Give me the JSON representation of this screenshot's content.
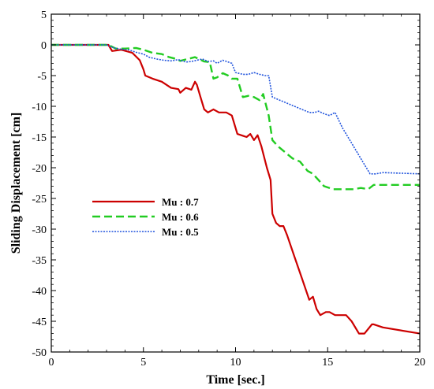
{
  "chart_data": {
    "type": "line",
    "title": "",
    "xlabel": "Time [sec.]",
    "ylabel": "Sliding Displacement [cm]",
    "xlim": [
      0,
      20
    ],
    "ylim": [
      -50,
      5
    ],
    "xticks": [
      "0",
      "5",
      "10",
      "15",
      "20"
    ],
    "yticks": [
      "5",
      "0",
      "-5",
      "-10",
      "-15",
      "-20",
      "-25",
      "-30",
      "-35",
      "-40",
      "-45",
      "-50"
    ],
    "grid": false,
    "legend_position": "center-left",
    "series": [
      {
        "name": "Mu : 0.7",
        "color": "#cc0000",
        "style": "solid",
        "x": [
          0,
          3.1,
          3.3,
          3.8,
          4.4,
          4.8,
          5.0,
          5.1,
          5.5,
          6.0,
          6.5,
          6.9,
          7.0,
          7.3,
          7.6,
          7.8,
          7.9,
          8.1,
          8.3,
          8.5,
          8.8,
          9.1,
          9.5,
          9.8,
          10.1,
          10.4,
          10.6,
          10.8,
          11.0,
          11.2,
          11.4,
          11.7,
          11.9,
          12.0,
          12.2,
          12.4,
          12.6,
          12.8,
          13.2,
          13.6,
          14.0,
          14.2,
          14.4,
          14.6,
          14.9,
          15.1,
          15.4,
          15.7,
          16.0,
          16.3,
          16.7,
          17.0,
          17.4,
          17.5,
          18.0,
          20.0
        ],
        "y": [
          0,
          0,
          -1.0,
          -0.8,
          -1.3,
          -2.5,
          -4.0,
          -5.0,
          -5.5,
          -6.0,
          -7.0,
          -7.2,
          -7.8,
          -7.0,
          -7.3,
          -6.0,
          -6.5,
          -8.5,
          -10.5,
          -11.0,
          -10.5,
          -11.0,
          -11.0,
          -11.5,
          -14.5,
          -14.8,
          -15.0,
          -14.5,
          -15.5,
          -14.7,
          -16.5,
          -20.0,
          -22.0,
          -27.5,
          -29.0,
          -29.5,
          -29.5,
          -31.0,
          -34.5,
          -38.0,
          -41.5,
          -41.0,
          -43.0,
          -44.0,
          -43.5,
          -43.5,
          -44.0,
          -44.0,
          -44.0,
          -45.0,
          -47.0,
          -47.0,
          -45.5,
          -45.5,
          -46.0,
          -47.0
        ]
      },
      {
        "name": "Mu : 0.6",
        "color": "#22cc22",
        "style": "dashed",
        "x": [
          0,
          3.1,
          3.5,
          4.0,
          4.6,
          5.0,
          5.5,
          6.0,
          6.4,
          6.8,
          7.0,
          7.4,
          7.8,
          8.0,
          8.3,
          8.6,
          8.8,
          9.0,
          9.3,
          9.6,
          9.8,
          10.1,
          10.4,
          10.7,
          11.0,
          11.3,
          11.5,
          11.8,
          12.0,
          12.3,
          12.7,
          13.1,
          13.5,
          13.9,
          14.2,
          14.5,
          14.8,
          15.0,
          15.3,
          15.6,
          16.0,
          16.4,
          16.8,
          17.2,
          17.5,
          18.0,
          20.0
        ],
        "y": [
          0,
          0,
          -0.6,
          -0.6,
          -0.5,
          -0.8,
          -1.3,
          -1.5,
          -2.0,
          -2.3,
          -2.6,
          -2.3,
          -2.0,
          -2.3,
          -2.7,
          -2.8,
          -5.5,
          -5.3,
          -4.6,
          -5.0,
          -5.5,
          -5.5,
          -8.5,
          -8.3,
          -8.5,
          -9.0,
          -8.0,
          -11.5,
          -15.5,
          -16.5,
          -17.5,
          -18.5,
          -19.0,
          -20.5,
          -21.0,
          -22.0,
          -23.0,
          -23.2,
          -23.5,
          -23.5,
          -23.5,
          -23.5,
          -23.3,
          -23.5,
          -22.8,
          -22.8,
          -22.8
        ]
      },
      {
        "name": "Mu : 0.5",
        "color": "#2255dd",
        "style": "dotted",
        "x": [
          0,
          3.0,
          3.4,
          3.8,
          4.2,
          4.6,
          5.0,
          5.3,
          5.7,
          6.1,
          6.5,
          6.9,
          7.3,
          7.6,
          7.9,
          8.2,
          8.5,
          8.8,
          9.0,
          9.3,
          9.6,
          9.8,
          10.0,
          10.4,
          10.7,
          11.0,
          11.3,
          11.6,
          11.8,
          12.0,
          12.4,
          12.8,
          13.2,
          13.6,
          14.0,
          14.3,
          14.5,
          14.8,
          15.1,
          15.4,
          15.8,
          16.2,
          16.6,
          17.0,
          17.3,
          17.6,
          18.0,
          20.0
        ],
        "y": [
          0,
          0,
          -0.5,
          -0.7,
          -0.8,
          -1.2,
          -1.5,
          -2.0,
          -2.3,
          -2.5,
          -2.6,
          -2.4,
          -2.8,
          -2.7,
          -2.5,
          -2.3,
          -2.7,
          -2.6,
          -3.0,
          -2.5,
          -2.8,
          -3.0,
          -4.5,
          -4.8,
          -4.8,
          -4.5,
          -4.8,
          -5.0,
          -5.0,
          -8.5,
          -9.0,
          -9.5,
          -10.0,
          -10.5,
          -11.0,
          -11.0,
          -10.8,
          -11.2,
          -11.5,
          -11.0,
          -13.5,
          -15.5,
          -17.5,
          -19.5,
          -21.0,
          -21.0,
          -20.8,
          -21.0
        ]
      }
    ]
  }
}
